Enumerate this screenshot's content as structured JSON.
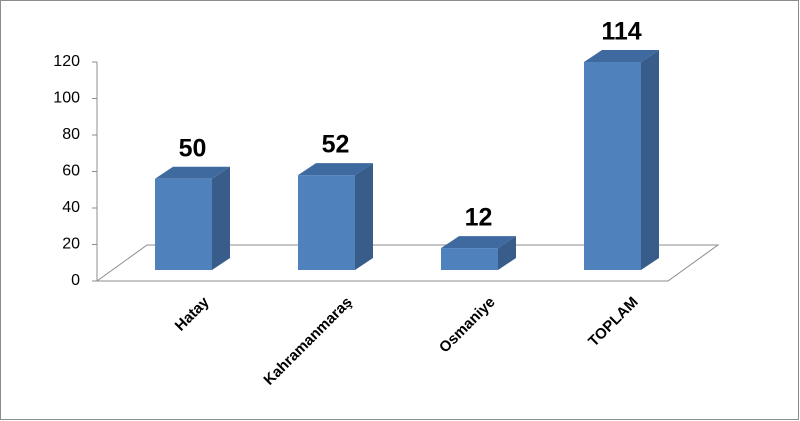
{
  "chart_data": {
    "type": "bar",
    "categories": [
      "Hatay",
      "Kahramanmaraş",
      "Osmaniye",
      "TOPLAM"
    ],
    "values": [
      50,
      52,
      12,
      114
    ],
    "color": "#4f81bd",
    "ylim": [
      0,
      120
    ],
    "yticks": [
      0,
      20,
      40,
      60,
      80,
      100,
      120
    ]
  }
}
